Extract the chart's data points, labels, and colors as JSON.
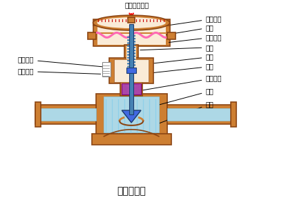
{
  "title": "气动薄膜阀",
  "background_color": "#ffffff",
  "valve_color": "#cd7f32",
  "valve_edge": "#8B4513",
  "spring_color": "#4682B4",
  "diaphragm_color": "#FF69B4",
  "seal_color": "#DDA0DD",
  "flow_color": "#ADD8E6",
  "arrow_color": "#FF0000",
  "stem_color": "#4682B4",
  "plug_color": "#4169E1",
  "labels": {
    "top_inlet": "压力信号入口",
    "upper_chamber": "膜室上腔",
    "diaphragm": "膜片",
    "lower_chamber": "膜室下腔",
    "spring": "弹簧",
    "push_rod": "推杆",
    "valve_stem": "阀杆",
    "seal": "密封填料",
    "plug": "阀芯",
    "seat": "阀座",
    "travel_indicator": "行程指针",
    "travel_scale": "行程刻度"
  },
  "figsize": [
    4.11,
    2.93
  ],
  "dpi": 100
}
